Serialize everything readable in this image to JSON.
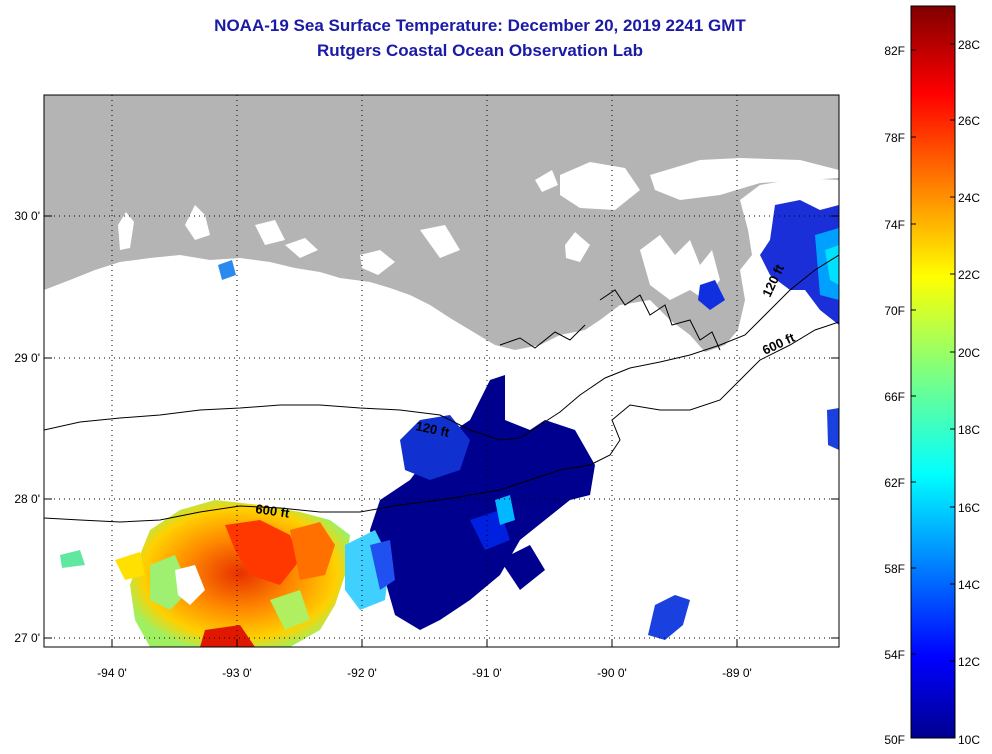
{
  "header": {
    "title": "NOAA-19 Sea Surface Temperature:  December 20, 2019 2241 GMT",
    "subtitle": "Rutgers Coastal Ocean Observation Lab"
  },
  "map": {
    "lon_ticks": [
      "-94 0'",
      "-93 0'",
      "-92 0'",
      "-91 0'",
      "-90 0'",
      "-89 0'"
    ],
    "lat_ticks": [
      "30 0'",
      "29 0'",
      "28 0'",
      "27 0'"
    ],
    "contours": [
      {
        "label": "120 ft"
      },
      {
        "label": "600 ft"
      },
      {
        "label": "120 ft"
      },
      {
        "label": "600 ft"
      }
    ],
    "colors": {
      "land": "#b4b4b4",
      "cold": "#00008f",
      "warm": "#ff4000"
    }
  },
  "colorbar": {
    "fahrenheit_labels": [
      "82F",
      "78F",
      "74F",
      "70F",
      "66F",
      "62F",
      "58F",
      "54F",
      "50F"
    ],
    "celsius_labels": [
      "28C",
      "26C",
      "24C",
      "22C",
      "20C",
      "18C",
      "16C",
      "14C",
      "12C",
      "10C"
    ],
    "colormap": "jet"
  }
}
